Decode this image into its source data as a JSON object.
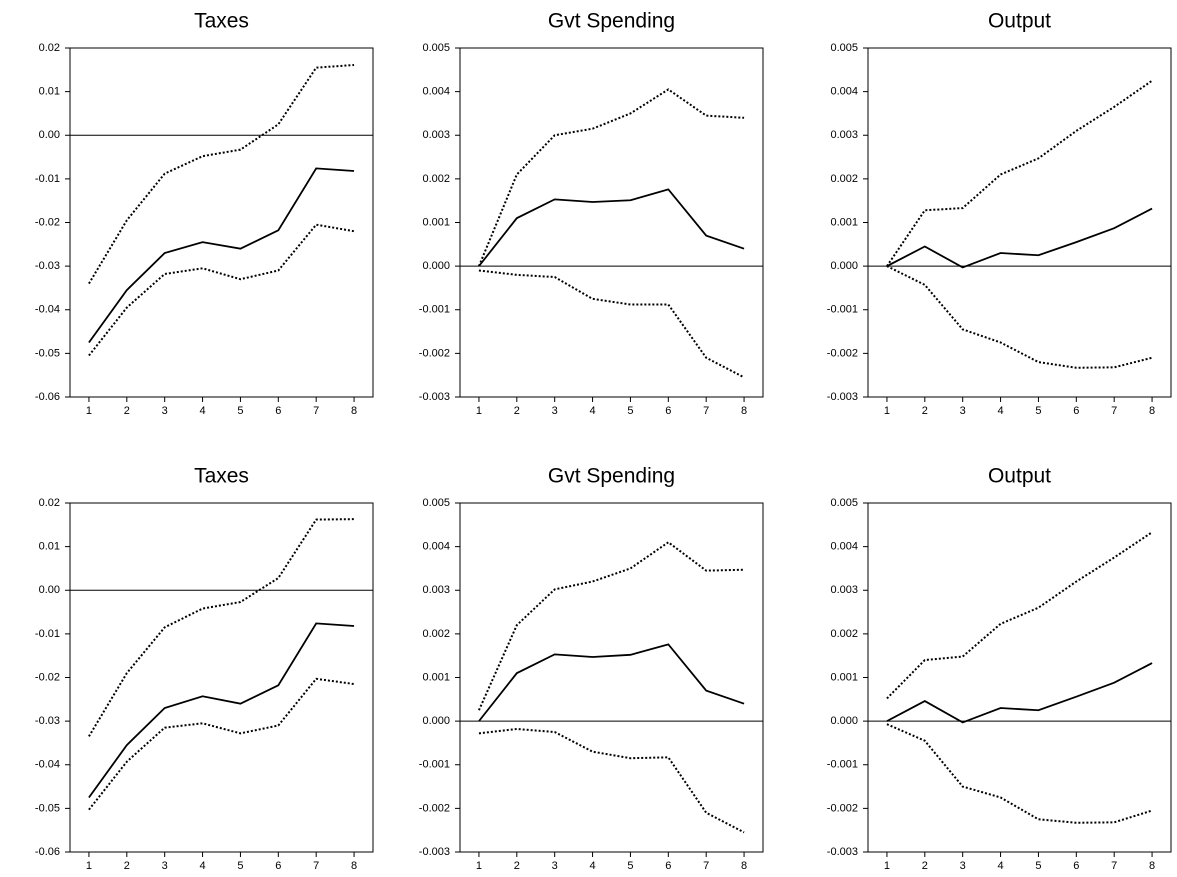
{
  "chart_data": [
    {
      "type": "line",
      "title": "Taxes",
      "x": [
        1,
        2,
        3,
        4,
        5,
        6,
        7,
        8
      ],
      "xlim": [
        0.5,
        8.5
      ],
      "xticks": [
        1,
        2,
        3,
        4,
        5,
        6,
        7,
        8
      ],
      "ylim": [
        -0.06,
        0.02
      ],
      "yticks": [
        0.02,
        0.01,
        {
          "value": 0,
          "label": "0.00"
        },
        -0.01,
        -0.02,
        -0.03,
        -0.04,
        -0.05,
        -0.06
      ],
      "zero_line": true,
      "series": [
        {
          "color": "#000000",
          "dash": "solid",
          "values": [
            -0.0475,
            -0.0355,
            -0.027,
            -0.0245,
            -0.026,
            -0.0218,
            -0.0076,
            -0.0082
          ]
        },
        {
          "color": "#000000",
          "dash": "dotted",
          "values": [
            -0.034,
            -0.0195,
            -0.0088,
            -0.0048,
            -0.0033,
            0.0025,
            0.0155,
            0.0161
          ]
        },
        {
          "color": "#000000",
          "dash": "dotted",
          "values": [
            -0.0505,
            -0.0395,
            -0.0318,
            -0.0305,
            -0.033,
            -0.031,
            -0.0205,
            -0.022
          ]
        }
      ]
    },
    {
      "type": "line",
      "title": "Gvt Spending",
      "x": [
        1,
        2,
        3,
        4,
        5,
        6,
        7,
        8
      ],
      "xlim": [
        0.5,
        8.5
      ],
      "xticks": [
        1,
        2,
        3,
        4,
        5,
        6,
        7,
        8
      ],
      "ylim": [
        -0.003,
        0.005
      ],
      "yticks": [
        0.005,
        0.004,
        0.003,
        0.002,
        0.001,
        {
          "value": 0,
          "label": "0.000"
        },
        -0.001,
        -0.002,
        -0.003
      ],
      "zero_line": true,
      "series": [
        {
          "color": "#000000",
          "dash": "solid",
          "values": [
            0,
            0.0011,
            0.00153,
            0.00147,
            0.00151,
            0.00176,
            0.0007,
            0.0004
          ]
        },
        {
          "color": "#000000",
          "dash": "dotted",
          "values": [
            0,
            0.0021,
            0.003,
            0.00315,
            0.0035,
            0.00405,
            0.00345,
            0.0034
          ]
        },
        {
          "color": "#000000",
          "dash": "dotted",
          "values": [
            -0.0001,
            -0.0002,
            -0.00025,
            -0.00075,
            -0.00088,
            -0.00088,
            -0.0021,
            -0.00255
          ]
        }
      ]
    },
    {
      "type": "line",
      "title": "Output",
      "x": [
        1,
        2,
        3,
        4,
        5,
        6,
        7,
        8
      ],
      "xlim": [
        0.5,
        8.5
      ],
      "xticks": [
        1,
        2,
        3,
        4,
        5,
        6,
        7,
        8
      ],
      "ylim": [
        -0.003,
        0.005
      ],
      "yticks": [
        0.005,
        0.004,
        0.003,
        0.002,
        0.001,
        {
          "value": 0,
          "label": "0.000"
        },
        -0.001,
        -0.002,
        -0.003
      ],
      "zero_line": true,
      "series": [
        {
          "color": "#000000",
          "dash": "solid",
          "values": [
            0,
            0.00045,
            -3e-05,
            0.0003,
            0.00025,
            0.00055,
            0.00087,
            0.00132
          ]
        },
        {
          "color": "#000000",
          "dash": "dotted",
          "values": [
            0,
            0.00128,
            0.00133,
            0.0021,
            0.00247,
            0.0031,
            0.00365,
            0.00425
          ]
        },
        {
          "color": "#000000",
          "dash": "dotted",
          "values": [
            0,
            -0.00043,
            -0.00145,
            -0.00175,
            -0.0022,
            -0.00233,
            -0.00232,
            -0.0021
          ]
        }
      ]
    },
    {
      "type": "line",
      "title": "Taxes",
      "x": [
        1,
        2,
        3,
        4,
        5,
        6,
        7,
        8
      ],
      "xlim": [
        0.5,
        8.5
      ],
      "xticks": [
        1,
        2,
        3,
        4,
        5,
        6,
        7,
        8
      ],
      "ylim": [
        -0.06,
        0.02
      ],
      "yticks": [
        0.02,
        0.01,
        {
          "value": 0,
          "label": "0.00"
        },
        -0.01,
        -0.02,
        -0.03,
        -0.04,
        -0.05,
        -0.06
      ],
      "zero_line": true,
      "series": [
        {
          "color": "#000000",
          "dash": "solid",
          "values": [
            -0.0475,
            -0.0355,
            -0.027,
            -0.0243,
            -0.026,
            -0.0218,
            -0.0076,
            -0.0082
          ]
        },
        {
          "color": "#000000",
          "dash": "dotted",
          "values": [
            -0.0335,
            -0.019,
            -0.0085,
            -0.0042,
            -0.0027,
            0.0028,
            0.0162,
            0.0163
          ]
        },
        {
          "color": "#000000",
          "dash": "dotted",
          "values": [
            -0.0503,
            -0.0393,
            -0.0315,
            -0.0305,
            -0.0328,
            -0.031,
            -0.0203,
            -0.0215
          ]
        }
      ]
    },
    {
      "type": "line",
      "title": "Gvt Spending",
      "x": [
        1,
        2,
        3,
        4,
        5,
        6,
        7,
        8
      ],
      "xlim": [
        0.5,
        8.5
      ],
      "xticks": [
        1,
        2,
        3,
        4,
        5,
        6,
        7,
        8
      ],
      "ylim": [
        -0.003,
        0.005
      ],
      "yticks": [
        0.005,
        0.004,
        0.003,
        0.002,
        0.001,
        {
          "value": 0,
          "label": "0.000"
        },
        -0.001,
        -0.002,
        -0.003
      ],
      "zero_line": true,
      "series": [
        {
          "color": "#000000",
          "dash": "solid",
          "values": [
            0,
            0.0011,
            0.00153,
            0.00147,
            0.00152,
            0.00176,
            0.0007,
            0.0004
          ]
        },
        {
          "color": "#000000",
          "dash": "dotted",
          "values": [
            0.00025,
            0.0022,
            0.00302,
            0.0032,
            0.0035,
            0.0041,
            0.00345,
            0.00347
          ]
        },
        {
          "color": "#000000",
          "dash": "dotted",
          "values": [
            -0.00028,
            -0.00018,
            -0.00025,
            -0.0007,
            -0.00085,
            -0.00083,
            -0.0021,
            -0.00255
          ]
        }
      ]
    },
    {
      "type": "line",
      "title": "Output",
      "x": [
        1,
        2,
        3,
        4,
        5,
        6,
        7,
        8
      ],
      "xlim": [
        0.5,
        8.5
      ],
      "xticks": [
        1,
        2,
        3,
        4,
        5,
        6,
        7,
        8
      ],
      "ylim": [
        -0.003,
        0.005
      ],
      "yticks": [
        0.005,
        0.004,
        0.003,
        0.002,
        0.001,
        {
          "value": 0,
          "label": "0.000"
        },
        -0.001,
        -0.002,
        -0.003
      ],
      "zero_line": true,
      "series": [
        {
          "color": "#000000",
          "dash": "solid",
          "values": [
            0,
            0.00046,
            -3e-05,
            0.0003,
            0.00025,
            0.00056,
            0.00088,
            0.00133
          ]
        },
        {
          "color": "#000000",
          "dash": "dotted",
          "values": [
            0.00052,
            0.0014,
            0.00148,
            0.00223,
            0.0026,
            0.0032,
            0.00375,
            0.00433
          ]
        },
        {
          "color": "#000000",
          "dash": "dotted",
          "values": [
            -7e-05,
            -0.00045,
            -0.0015,
            -0.00175,
            -0.00225,
            -0.00233,
            -0.00232,
            -0.00205
          ]
        }
      ]
    }
  ]
}
